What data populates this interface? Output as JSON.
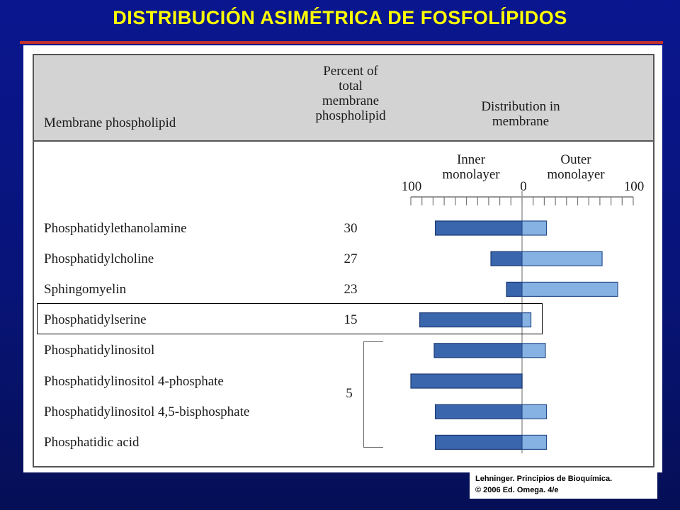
{
  "slide": {
    "title": "DISTRIBUCIÓN ASIMÉTRICA DE FOSFOLÍPIDOS",
    "credit_line1": "Lehninger. Principios de Bioquímica.",
    "credit_line2": "© 2006 Ed. Omega. 4/e"
  },
  "colors": {
    "background": "#0a168f",
    "title": "#ffff00",
    "inner_bar": "#3a66ad",
    "outer_bar": "#86b2e3"
  },
  "table": {
    "col1_header": "Membrane phospholipid",
    "col2_header": [
      "Percent of",
      "total",
      "membrane",
      "phospholipid"
    ],
    "col3_header": [
      "Distribution in",
      "membrane"
    ],
    "inner_label": [
      "Inner",
      "monolayer"
    ],
    "outer_label": [
      "Outer",
      "monolayer"
    ],
    "axis_left": "100",
    "axis_center": "0",
    "axis_right": "100",
    "grouped_percent": "5"
  },
  "chart_data": {
    "type": "bar",
    "orientation": "horizontal-diverging",
    "categories": [
      "Phosphatidylethanolamine",
      "Phosphatidylcholine",
      "Sphingomyelin",
      "Phosphatidylserine",
      "Phosphatidylinositol",
      "Phosphatidylinositol 4-phosphate",
      "Phosphatidylinositol 4,5-bisphosphate",
      "Phosphatidic acid"
    ],
    "percent_of_total": [
      "30",
      "27",
      "23",
      "15",
      "",
      "",
      "",
      ""
    ],
    "series": [
      {
        "name": "Inner monolayer",
        "values": [
          78,
          28,
          14,
          92,
          79,
          100,
          78,
          78
        ]
      },
      {
        "name": "Outer monolayer",
        "values": [
          22,
          72,
          86,
          8,
          21,
          0,
          22,
          22
        ]
      }
    ],
    "xlim": [
      -100,
      100
    ],
    "tick_step": 10,
    "highlighted": "Phosphatidylserine"
  }
}
